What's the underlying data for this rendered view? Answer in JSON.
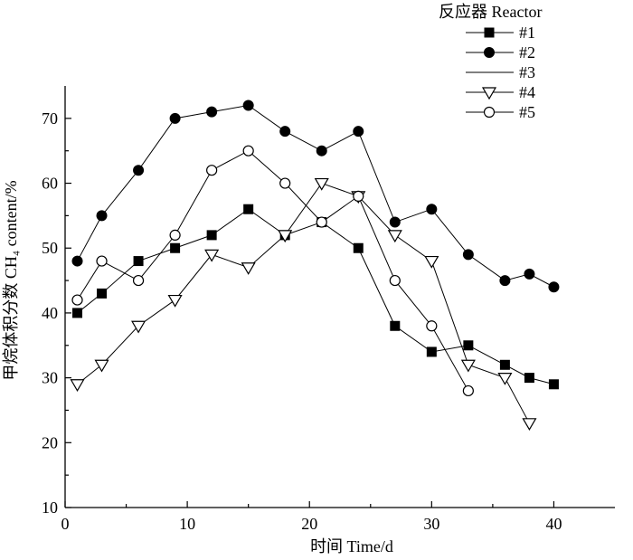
{
  "chart_data": {
    "type": "line",
    "xlabel": "时间 Time/d",
    "ylabel": "甲烷体积分数 CH₄ content/%",
    "xlim": [
      0,
      45
    ],
    "ylim": [
      10,
      75
    ],
    "xticks": [
      0,
      10,
      20,
      30,
      40
    ],
    "yticks": [
      10,
      20,
      30,
      40,
      50,
      60,
      70
    ],
    "grid": false,
    "legend": {
      "title": "反应器 Reactor",
      "placement": "top-right"
    },
    "series": [
      {
        "name": "#1",
        "marker": "filled-square",
        "x": [
          1,
          3,
          6,
          9,
          12,
          15,
          18,
          21,
          24,
          27,
          30,
          33,
          36,
          38,
          40
        ],
        "y": [
          40,
          43,
          48,
          50,
          52,
          56,
          52,
          54,
          50,
          38,
          34,
          35,
          32,
          30,
          29
        ]
      },
      {
        "name": "#2",
        "marker": "filled-circle",
        "x": [
          1,
          3,
          6,
          9,
          12,
          15,
          18,
          21,
          24,
          27,
          30,
          33,
          36,
          38,
          40
        ],
        "y": [
          48,
          55,
          62,
          70,
          71,
          72,
          68,
          65,
          68,
          54,
          56,
          49,
          45,
          46,
          44
        ]
      },
      {
        "name": "#3",
        "marker": "none",
        "x": [],
        "y": []
      },
      {
        "name": "#4",
        "marker": "open-triangle-down",
        "x": [
          1,
          3,
          6,
          9,
          12,
          15,
          18,
          21,
          24,
          27,
          30,
          33,
          36,
          38
        ],
        "y": [
          29,
          32,
          38,
          42,
          49,
          47,
          52,
          60,
          58,
          52,
          48,
          32,
          30,
          23
        ]
      },
      {
        "name": "#5",
        "marker": "open-circle",
        "x": [
          1,
          3,
          6,
          9,
          12,
          15,
          18,
          21,
          24,
          27,
          30,
          33
        ],
        "y": [
          42,
          48,
          45,
          52,
          62,
          65,
          60,
          54,
          58,
          45,
          38,
          28
        ]
      }
    ]
  }
}
